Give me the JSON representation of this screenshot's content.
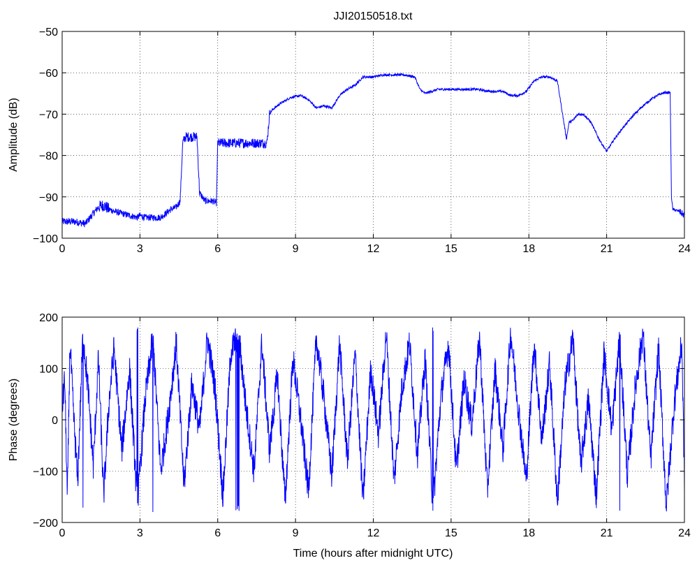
{
  "chart_data": [
    {
      "type": "line",
      "title": "JJI20150518.txt",
      "xlabel": "",
      "ylabel": "Amplitude (dB)",
      "xlim": [
        0,
        24
      ],
      "ylim": [
        -100,
        -50
      ],
      "xticks": [
        0,
        3,
        6,
        9,
        12,
        15,
        18,
        21,
        24
      ],
      "yticks": [
        -50,
        -60,
        -70,
        -80,
        -90,
        -100
      ],
      "xtick_labels": [
        "0",
        "3",
        "6",
        "9",
        "12",
        "15",
        "18",
        "21",
        "24"
      ],
      "ytick_labels": [
        "−50",
        "−60",
        "−70",
        "−80",
        "−90",
        "−100"
      ],
      "grid": true,
      "color": "#0000ff",
      "x": [
        0,
        0.5,
        0.9,
        1.2,
        1.4,
        1.6,
        1.8,
        2.0,
        2.3,
        2.6,
        2.9,
        3.0,
        3.2,
        3.5,
        3.8,
        4.0,
        4.2,
        4.4,
        4.55,
        4.65,
        4.75,
        5.0,
        5.2,
        5.3,
        5.5,
        5.8,
        5.95,
        6.0,
        6.1,
        6.5,
        7.0,
        7.5,
        7.9,
        8.0,
        8.1,
        8.4,
        8.8,
        9.2,
        9.5,
        9.8,
        10.1,
        10.4,
        10.7,
        11.0,
        11.3,
        11.6,
        12.0,
        12.4,
        12.8,
        13.2,
        13.6,
        13.8,
        14.0,
        14.5,
        15.0,
        15.5,
        16.0,
        16.5,
        17.0,
        17.3,
        17.6,
        17.9,
        18.2,
        18.5,
        18.8,
        19.1,
        19.3,
        19.45,
        19.55,
        19.7,
        19.9,
        20.1,
        20.4,
        20.7,
        21.0,
        21.3,
        21.6,
        22.0,
        22.4,
        22.8,
        23.2,
        23.45,
        23.5,
        23.55,
        23.8,
        24
      ],
      "y": [
        -96,
        -96,
        -96.5,
        -94,
        -92.5,
        -92,
        -93,
        -93.5,
        -94,
        -94.5,
        -95,
        -94.5,
        -95,
        -95,
        -95,
        -94,
        -93,
        -92.5,
        -91,
        -77,
        -75.5,
        -75.5,
        -75.5,
        -89,
        -91,
        -91,
        -91.5,
        -77,
        -77,
        -77,
        -77,
        -77,
        -77,
        -70,
        -69,
        -67.5,
        -66,
        -65.5,
        -66.5,
        -68.5,
        -68,
        -68.5,
        -65.5,
        -64,
        -63,
        -61,
        -61,
        -60.5,
        -60.5,
        -60.5,
        -61,
        -64,
        -65,
        -64,
        -64,
        -64,
        -64,
        -64.5,
        -64.5,
        -65.5,
        -65.5,
        -64.5,
        -62,
        -61,
        -61,
        -62,
        -70,
        -76,
        -72,
        -71.5,
        -70,
        -70,
        -72,
        -76,
        -79,
        -76,
        -73.5,
        -70.5,
        -68,
        -66,
        -64.8,
        -64.8,
        -90,
        -93,
        -93.5,
        -94.5
      ],
      "jitter_db": [
        0.9,
        0.9,
        0.9,
        0.9,
        1.5,
        1.5,
        0.8,
        0.8,
        0.8,
        0.8,
        0.8,
        0.8,
        0.8,
        0.8,
        0.8,
        0.8,
        0.8,
        0.8,
        0.8,
        1.2,
        1.2,
        1.2,
        1.2,
        0.8,
        0.8,
        0.8,
        0.8,
        1.2,
        1.2,
        1.2,
        1.2,
        1.2,
        1.2,
        0.3,
        0.3,
        0.3,
        0.3,
        0.3,
        0.3,
        0.3,
        0.3,
        0.3,
        0.3,
        0.3,
        0.3,
        0.3,
        0.3,
        0.3,
        0.3,
        0.3,
        0.3,
        0.3,
        0.3,
        0.3,
        0.3,
        0.3,
        0.3,
        0.3,
        0.3,
        0.3,
        0.3,
        0.3,
        0.3,
        0.3,
        0.3,
        0.3,
        0.3,
        0.3,
        0.3,
        0.3,
        0.3,
        0.3,
        0.3,
        0.3,
        0.3,
        0.3,
        0.3,
        0.3,
        0.3,
        0.3,
        0.3,
        0.3,
        0.3,
        0.3,
        0.8,
        0.8
      ]
    },
    {
      "type": "line",
      "title": "",
      "xlabel": "Time (hours after midnight UTC)",
      "ylabel": "Phase (degrees)",
      "xlim": [
        0,
        24
      ],
      "ylim": [
        -200,
        200
      ],
      "xticks": [
        0,
        3,
        6,
        9,
        12,
        15,
        18,
        21,
        24
      ],
      "yticks": [
        200,
        100,
        0,
        -100,
        -200
      ],
      "xtick_labels": [
        "0",
        "3",
        "6",
        "9",
        "12",
        "15",
        "18",
        "21",
        "24"
      ],
      "ytick_labels": [
        "200",
        "100",
        "0",
        "−100",
        "−200"
      ],
      "grid": true,
      "color": "#0000ff",
      "wrap_range": [
        -180,
        180
      ],
      "x": [
        0,
        0.1,
        0.2,
        0.3,
        0.45,
        0.6,
        0.8,
        1.0,
        1.2,
        1.4,
        1.6,
        1.8,
        2.0,
        2.3,
        2.6,
        2.9,
        3.2,
        3.5,
        3.8,
        4.1,
        4.4,
        4.7,
        5.0,
        5.3,
        5.6,
        5.9,
        6.2,
        6.5,
        6.8,
        7.1,
        7.4,
        7.7,
        8.0,
        8.3,
        8.6,
        8.9,
        9.2,
        9.5,
        9.8,
        10.1,
        10.4,
        10.7,
        11.0,
        11.3,
        11.6,
        11.9,
        12.2,
        12.5,
        12.8,
        13.1,
        13.4,
        13.7,
        14.0,
        14.3,
        14.6,
        14.9,
        15.2,
        15.5,
        15.8,
        16.1,
        16.4,
        16.7,
        17.0,
        17.3,
        17.6,
        17.9,
        18.2,
        18.5,
        18.8,
        19.1,
        19.4,
        19.7,
        20.0,
        20.3,
        20.6,
        20.9,
        21.2,
        21.5,
        21.8,
        22.1,
        22.4,
        22.7,
        23.0,
        23.3,
        23.6,
        23.9,
        24
      ],
      "y": [
        20,
        80,
        -160,
        150,
        0,
        -120,
        170,
        60,
        -90,
        120,
        -150,
        30,
        140,
        -60,
        100,
        -170,
        40,
        160,
        -100,
        10,
        150,
        -130,
        70,
        -20,
        160,
        60,
        -150,
        130,
        170,
        20,
        -100,
        150,
        -60,
        90,
        -160,
        120,
        0,
        -140,
        160,
        40,
        -110,
        150,
        -80,
        130,
        -160,
        100,
        -30,
        170,
        -120,
        60,
        150,
        -70,
        120,
        -170,
        40,
        150,
        -100,
        80,
        -10,
        160,
        -140,
        100,
        -60,
        170,
        20,
        -120,
        150,
        -40,
        110,
        -160,
        70,
        160,
        -90,
        40,
        -150,
        130,
        -20,
        160,
        -110,
        60,
        170,
        -80,
        140,
        -170,
        30,
        150,
        -120
      ],
      "jitter_deg": 30
    }
  ]
}
